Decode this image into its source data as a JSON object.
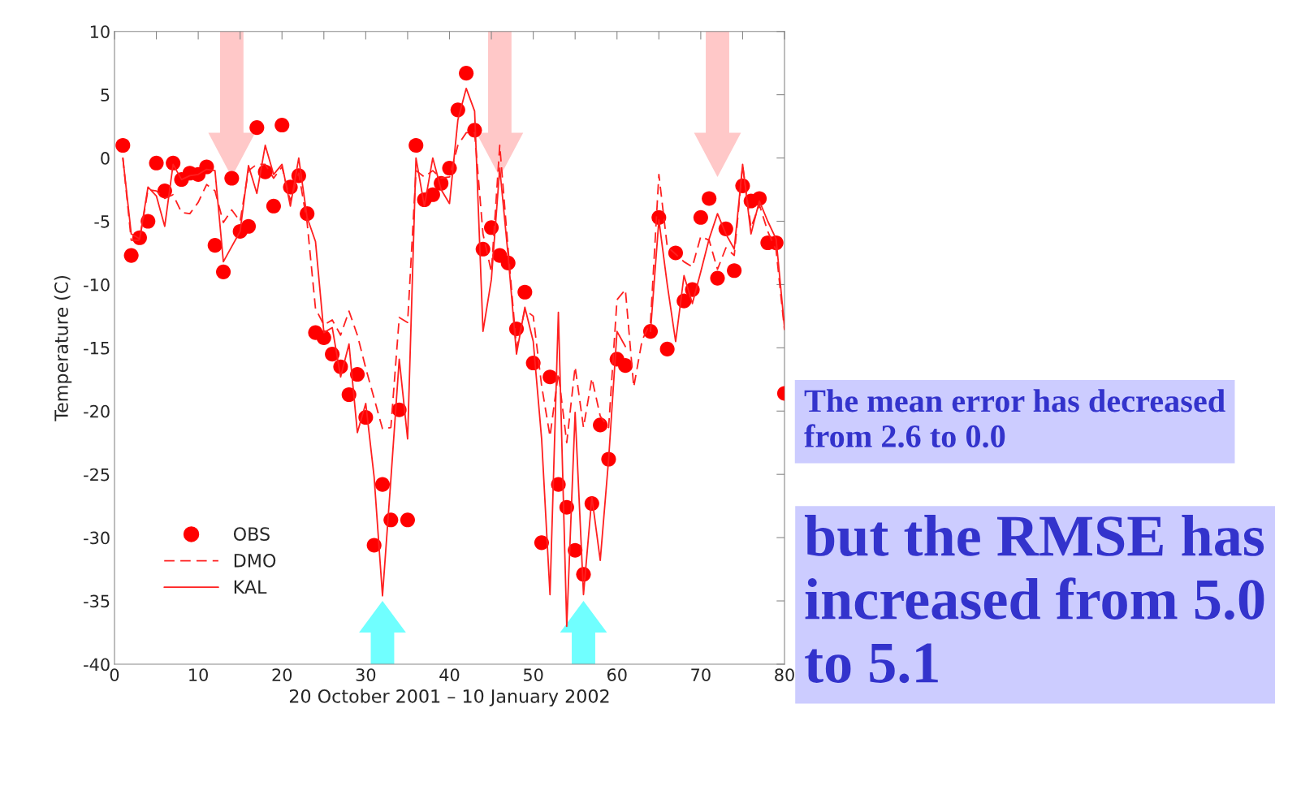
{
  "chart_data": {
    "type": "line",
    "xlabel": "20 October 2001 – 10 January 2002",
    "ylabel": "Temperature (C)",
    "x": [
      1,
      2,
      3,
      4,
      5,
      6,
      7,
      8,
      9,
      10,
      11,
      12,
      13,
      14,
      15,
      16,
      17,
      18,
      19,
      20,
      21,
      22,
      23,
      24,
      25,
      26,
      27,
      28,
      29,
      30,
      31,
      32,
      33,
      34,
      35,
      36,
      37,
      38,
      39,
      40,
      41,
      42,
      43,
      44,
      45,
      46,
      47,
      48,
      49,
      50,
      51,
      52,
      53,
      54,
      55,
      56,
      57,
      58,
      59,
      60,
      61,
      62,
      63,
      64,
      65,
      66,
      67,
      68,
      69,
      70,
      71,
      72,
      73,
      74,
      75,
      76,
      77,
      78,
      79,
      80
    ],
    "series": [
      {
        "name": "OBS",
        "type": "scatter",
        "marker": "circle",
        "color": "#ff0000",
        "values": [
          1.0,
          -7.7,
          -6.3,
          -5.0,
          -0.4,
          -2.6,
          -0.4,
          -1.7,
          -1.2,
          -1.3,
          -0.7,
          -6.9,
          -9.0,
          -1.6,
          -5.8,
          -5.4,
          2.4,
          -1.1,
          -3.8,
          2.6,
          -2.3,
          -1.4,
          -4.4,
          -13.8,
          -14.2,
          -15.5,
          -16.5,
          -18.7,
          -17.1,
          -20.5,
          -30.6,
          -25.8,
          -28.6,
          -19.9,
          -28.6,
          1.0,
          -3.3,
          -2.9,
          -2.0,
          -0.8,
          3.8,
          6.7,
          2.2,
          -7.2,
          -5.5,
          -7.7,
          -8.3,
          -13.5,
          -10.6,
          -16.2,
          -30.4,
          -17.3,
          -25.8,
          -27.6,
          -31.0,
          -32.9,
          -27.3,
          -21.1,
          -23.8,
          -15.9,
          -16.4,
          null,
          null,
          -13.7,
          -4.7,
          -15.1,
          -7.5,
          -11.3,
          -10.4,
          -4.7,
          -3.2,
          -9.5,
          -5.6,
          -8.9,
          -2.2,
          -3.4,
          -3.2,
          -6.7,
          -6.7,
          -18.6
        ]
      },
      {
        "name": "DMO",
        "line_style": "dashed",
        "color": "#ff2020",
        "values": [
          0.0,
          -6.5,
          -6.5,
          -2.5,
          -2.6,
          -3.2,
          -2.9,
          -4.3,
          -4.4,
          -3.5,
          -2.1,
          -2.6,
          -5.1,
          -4.1,
          -5.0,
          -1.0,
          -0.5,
          -0.5,
          -1.6,
          -0.7,
          -3.4,
          -1.2,
          -5.1,
          -11.9,
          -13.2,
          -12.8,
          -14.0,
          -12.1,
          -14.0,
          -16.6,
          -19.0,
          -21.4,
          -21.3,
          -12.6,
          -13.0,
          -1.0,
          -1.5,
          -1.0,
          -1.6,
          -1.5,
          1.0,
          2.0,
          2.0,
          -6.0,
          -9.0,
          1.0,
          -7.2,
          -15.0,
          -12.0,
          -12.5,
          -18.0,
          -22.0,
          -17.0,
          -22.5,
          -16.5,
          -21.3,
          -17.4,
          -20.4,
          -21.3,
          -11.2,
          -10.4,
          -18.1,
          -14.4,
          -13.0,
          -1.3,
          -7.0,
          -7.6,
          -8.2,
          -8.6,
          -6.2,
          -6.5,
          -8.8,
          -7.1,
          -7.7,
          -0.6,
          -5.5,
          -3.7,
          -5.8,
          -7.3,
          -13.6
        ]
      },
      {
        "name": "KAL",
        "line_style": "solid",
        "color": "#ff2020",
        "values": [
          0.0,
          -6.0,
          -6.4,
          -2.3,
          -3.0,
          -5.4,
          -0.5,
          -1.7,
          -1.4,
          -1.3,
          -0.9,
          -1.0,
          -8.2,
          -7.0,
          -5.8,
          -0.6,
          -2.8,
          1.0,
          -1.3,
          -0.5,
          -3.8,
          0.0,
          -4.7,
          -6.6,
          -13.8,
          -13.4,
          -17.3,
          -14.7,
          -21.7,
          -19.4,
          -25.2,
          -34.6,
          -25.4,
          -15.9,
          -22.2,
          0.0,
          -3.8,
          0.0,
          -2.5,
          -3.6,
          3.0,
          5.5,
          3.7,
          -13.7,
          -9.6,
          -0.8,
          -7.7,
          -15.5,
          -11.8,
          -14.5,
          -22.2,
          -34.5,
          -12.2,
          -37.0,
          -20.1,
          -34.5,
          -26.8,
          -31.8,
          -23.8,
          -13.7,
          -14.9,
          null,
          null,
          -13.7,
          -4.9,
          -10.0,
          -14.5,
          -9.3,
          -11.5,
          -9.0,
          -6.4,
          -4.4,
          -6.0,
          -7.2,
          -0.5,
          -6.0,
          -3.4,
          -5.0,
          -6.4,
          -13.4
        ]
      }
    ],
    "xlim": [
      0,
      80
    ],
    "xticks": [
      0,
      {
        "value": 5,
        "label": null
      },
      10,
      {
        "value": 15,
        "label": null
      },
      20,
      {
        "value": 25,
        "label": null
      },
      30,
      {
        "value": 35,
        "label": null
      },
      40,
      {
        "value": 45,
        "label": null
      },
      50,
      {
        "value": 55,
        "label": null
      },
      60,
      {
        "value": 65,
        "label": null
      },
      70,
      {
        "value": 75,
        "label": null
      },
      80
    ],
    "ylim": [
      -40,
      10
    ],
    "yticks": [
      -40,
      -35,
      -30,
      -25,
      -20,
      -15,
      -10,
      -5,
      0,
      5,
      10
    ],
    "grid": false,
    "legend": "bottom left",
    "annotations": [
      "The mean error has decreased from 2.6 to 0.0",
      "but the RMSE has increased from 5.0 to 5.1"
    ]
  }
}
